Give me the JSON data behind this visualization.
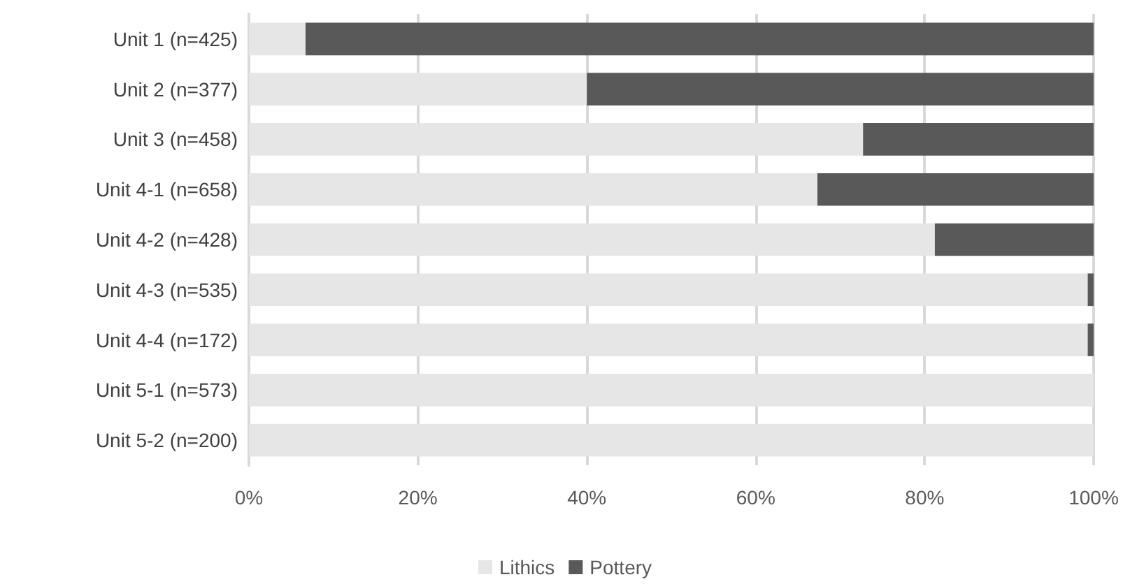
{
  "chart_data": {
    "type": "bar",
    "orientation": "horizontal",
    "stacked": true,
    "categories": [
      "Unit 1 (n=425)",
      "Unit 2 (n=377)",
      "Unit 3 (n=458)",
      "Unit 4-1 (n=658)",
      "Unit 4-2 (n=428)",
      "Unit 4-3 (n=535)",
      "Unit 4-4 (n=172)",
      "Unit 5-1 (n=573)",
      "Unit 5-2 (n=200)"
    ],
    "series": [
      {
        "name": "Lithics",
        "color": "#e6e6e6",
        "values": [
          6.7,
          40,
          72.7,
          67.3,
          81.2,
          99.3,
          99.3,
          100,
          100
        ]
      },
      {
        "name": "Pottery",
        "color": "#595959",
        "values": [
          93.3,
          60,
          27.3,
          32.7,
          18.8,
          0.7,
          0.7,
          0,
          0
        ]
      }
    ],
    "xlim": [
      0,
      100
    ],
    "xticks": [
      {
        "value": 0,
        "label": "0%"
      },
      {
        "value": 20,
        "label": "20%"
      },
      {
        "value": 40,
        "label": "40%"
      },
      {
        "value": 60,
        "label": "60%"
      },
      {
        "value": 80,
        "label": "80%"
      },
      {
        "value": 100,
        "label": "100%"
      }
    ],
    "grid": "x",
    "legend": "bottom"
  }
}
